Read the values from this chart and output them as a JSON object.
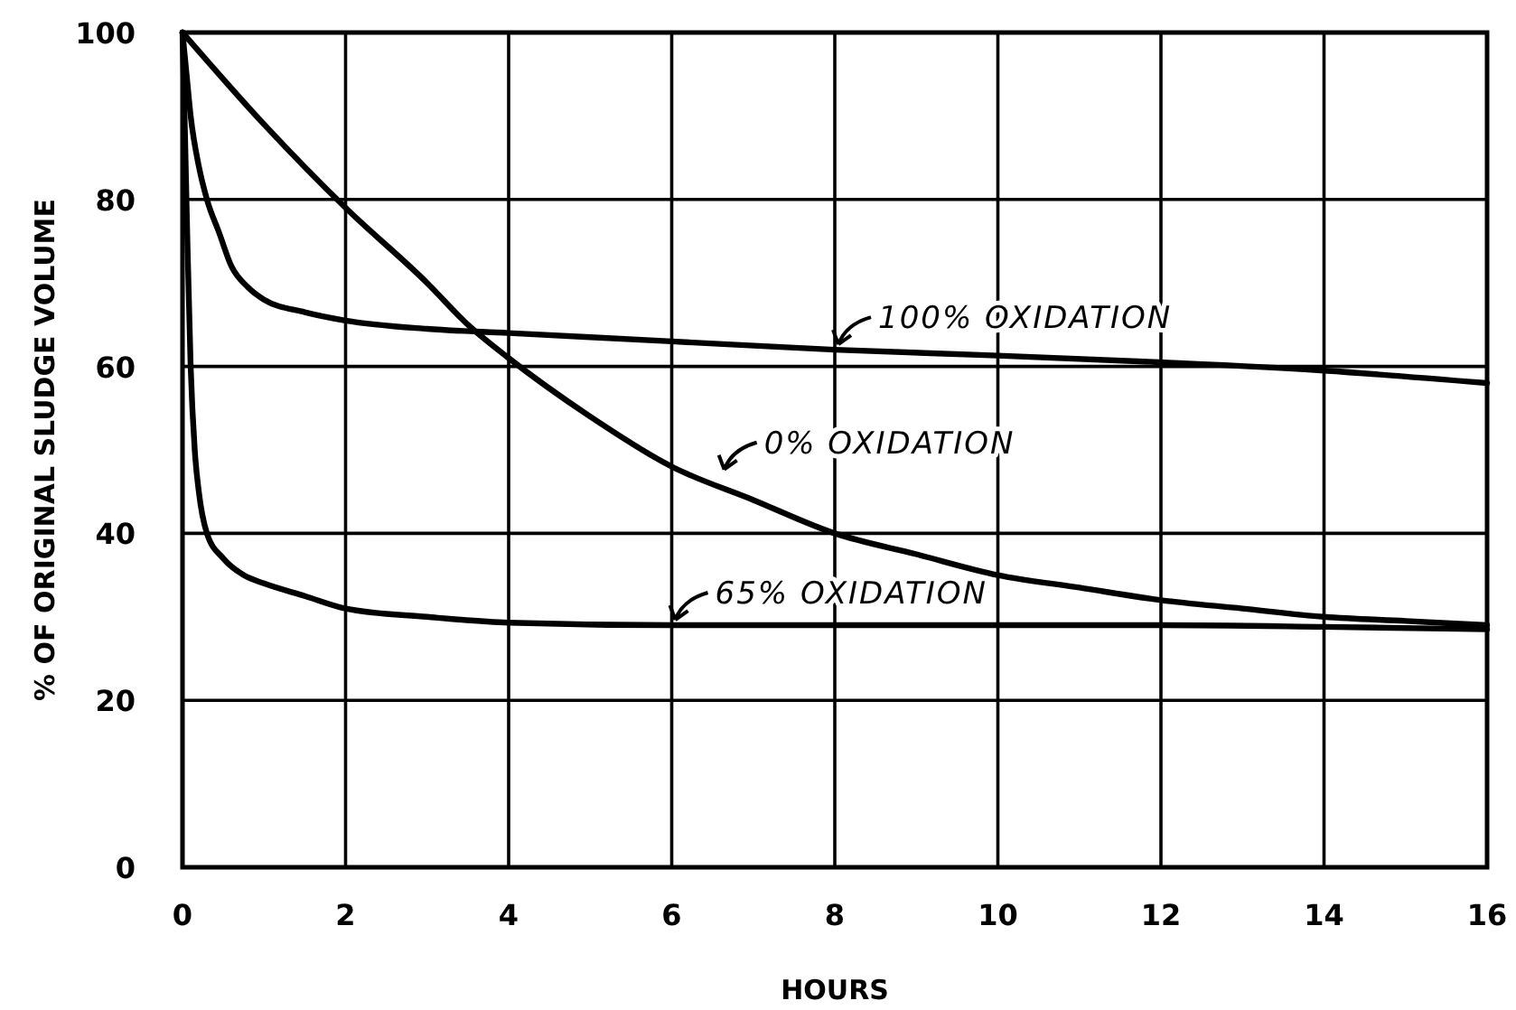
{
  "chart_data": {
    "type": "line",
    "xlabel": "HOURS",
    "ylabel": "% OF ORIGINAL SLUDGE VOLUME",
    "xlim": [
      0,
      16
    ],
    "ylim": [
      0,
      100
    ],
    "xticks": [
      0,
      2,
      4,
      6,
      8,
      10,
      12,
      14,
      16
    ],
    "yticks": [
      0,
      20,
      40,
      60,
      80,
      100
    ],
    "grid": true,
    "marker": "none",
    "line_style": "solid",
    "series": [
      {
        "color": "#000000",
        "x": [
          0,
          1,
          2,
          3,
          3.5,
          4,
          5,
          6,
          7,
          8,
          9,
          10,
          11,
          12,
          13,
          14,
          15,
          16
        ],
        "values": [
          100,
          89,
          79,
          70,
          65,
          61,
          54,
          48,
          44,
          40,
          37.5,
          35,
          33.5,
          32,
          31,
          30,
          29.5,
          29
        ]
      },
      {
        "color": "#000000",
        "x": [
          0,
          0.05,
          0.1,
          0.2,
          0.3,
          0.45,
          0.6,
          0.8,
          1,
          1.5,
          2,
          3,
          4,
          6,
          8,
          10,
          12,
          14,
          16
        ],
        "values": [
          100,
          95,
          90,
          84,
          80,
          76,
          72,
          69.5,
          68,
          66.5,
          65.5,
          64.5,
          64,
          63,
          62,
          61.3,
          60.5,
          59.5,
          58
        ]
      },
      {
        "color": "#000000",
        "x": [
          0,
          0.03,
          0.06,
          0.1,
          0.15,
          0.2,
          0.3,
          0.5,
          0.75,
          1,
          1.5,
          2,
          3,
          4,
          6,
          8,
          10,
          12,
          14,
          16
        ],
        "values": [
          100,
          88,
          75,
          60,
          50,
          45,
          40,
          37,
          35,
          34,
          32.5,
          31,
          30,
          29.3,
          29,
          29,
          29,
          29,
          28.8,
          28.5
        ]
      }
    ],
    "annotations": [
      {
        "text": "100% OXIDATION",
        "x": 8,
        "y": 62
      },
      {
        "text": "0% OXIDATION",
        "x": 6.6,
        "y": 47
      },
      {
        "text": "65% OXIDATION",
        "x": 6,
        "y": 29
      }
    ]
  }
}
